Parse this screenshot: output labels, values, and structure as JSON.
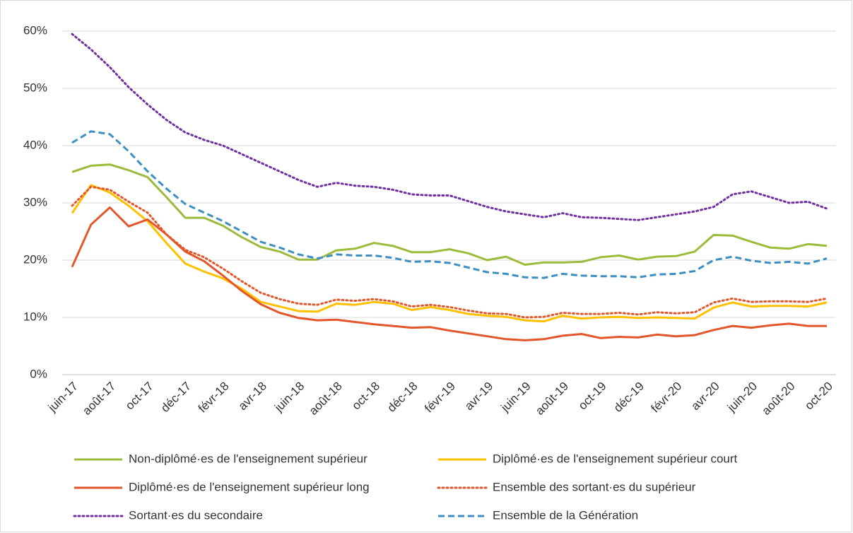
{
  "chart_data": {
    "type": "line",
    "categories": [
      "juin-17",
      null,
      "août-17",
      null,
      "oct-17",
      null,
      "déc-17",
      null,
      "févr-18",
      null,
      "avr-18",
      null,
      "juin-18",
      null,
      "août-18",
      null,
      "oct-18",
      null,
      "déc-18",
      null,
      "févr-19",
      null,
      "avr-19",
      null,
      "juin-19",
      null,
      "août-19",
      null,
      "oct-19",
      null,
      "déc-19",
      null,
      "févr-20",
      null,
      "avr-20",
      null,
      "juin-20",
      null,
      "août-20",
      null,
      "oct-20"
    ],
    "ylim": [
      0,
      60
    ],
    "yticks": [
      {
        "value": 0,
        "label": "0%"
      },
      {
        "value": 10,
        "label": "10%"
      },
      {
        "value": 20,
        "label": "20%"
      },
      {
        "value": 30,
        "label": "30%"
      },
      {
        "value": 40,
        "label": "40%"
      },
      {
        "value": 50,
        "label": "50%"
      },
      {
        "value": 60,
        "label": "60%"
      }
    ],
    "grid": true,
    "legend": "bottom",
    "series": [
      {
        "name": "Non-diplômé·es de l'enseignement supérieur",
        "color": "#9bbb3b",
        "dash": "solid",
        "values": [
          35.4,
          36.5,
          36.7,
          35.7,
          34.5,
          31,
          27.4,
          27.4,
          26,
          24,
          22.3,
          21.5,
          20.1,
          20.1,
          21.7,
          22,
          23,
          22.5,
          21.4,
          21.4,
          21.9,
          21.2,
          20,
          20.6,
          19.2,
          19.6,
          19.6,
          19.7,
          20.5,
          20.8,
          20.1,
          20.6,
          20.7,
          21.5,
          24.4,
          24.3,
          23.2,
          22.2,
          22,
          22.8,
          22.5
        ]
      },
      {
        "name": "Diplômé·es de l'enseignement supérieur court",
        "color": "#ffc000",
        "dash": "solid",
        "values": [
          28.2,
          33.1,
          31.8,
          29.5,
          26.8,
          23,
          19.4,
          18,
          16.8,
          15,
          12.7,
          11.9,
          11.1,
          11,
          12.4,
          12.2,
          12.7,
          12.4,
          11.3,
          11.8,
          11.3,
          10.6,
          10.3,
          10.1,
          9.5,
          9.3,
          10.3,
          9.8,
          10,
          10.1,
          9.9,
          10,
          9.9,
          9.8,
          11.7,
          12.6,
          11.9,
          12,
          12,
          11.9,
          12.6
        ]
      },
      {
        "name": "Diplômé·es de l'enseignement supérieur long",
        "color": "#e2562a",
        "dash": "solid",
        "values": [
          18.8,
          26.2,
          29.2,
          25.9,
          27.1,
          24.5,
          21.5,
          19.8,
          17.3,
          14.6,
          12.3,
          10.8,
          9.9,
          9.5,
          9.6,
          9.2,
          8.8,
          8.5,
          8.2,
          8.3,
          7.7,
          7.2,
          6.7,
          6.2,
          6,
          6.2,
          6.8,
          7.1,
          6.4,
          6.6,
          6.5,
          7,
          6.7,
          6.9,
          7.8,
          8.5,
          8.2,
          8.6,
          8.9,
          8.5,
          8.5
        ]
      },
      {
        "name": "Ensemble des sortant·es du supérieur",
        "color": "#e2562a",
        "dash": "dotted",
        "values": [
          29.5,
          32.8,
          32.3,
          30.2,
          28.3,
          24.5,
          21.8,
          20.5,
          18.5,
          16.3,
          14.3,
          13.2,
          12.4,
          12.2,
          13.1,
          12.9,
          13.2,
          12.8,
          11.9,
          12.2,
          11.8,
          11.2,
          10.7,
          10.6,
          10,
          10.1,
          10.8,
          10.6,
          10.6,
          10.8,
          10.5,
          10.9,
          10.7,
          10.9,
          12.6,
          13.3,
          12.7,
          12.8,
          12.8,
          12.7,
          13.3
        ]
      },
      {
        "name": "Sortant·es du secondaire",
        "color": "#7030a0",
        "dash": "dotted",
        "values": [
          59.5,
          56.8,
          53.7,
          50.2,
          47.2,
          44.5,
          42.3,
          41,
          40,
          38.5,
          37,
          35.5,
          34,
          32.8,
          33.5,
          33,
          32.8,
          32.3,
          31.5,
          31.3,
          31.3,
          30.3,
          29.3,
          28.5,
          28,
          27.5,
          28.2,
          27.5,
          27.4,
          27.2,
          27,
          27.5,
          28,
          28.5,
          29.3,
          31.5,
          32,
          31,
          30,
          30.2,
          29
        ]
      },
      {
        "name": "Ensemble de la Génération",
        "color": "#3d8ec1",
        "dash": "dashed",
        "values": [
          40.5,
          42.5,
          42,
          39,
          35.5,
          32.5,
          29.8,
          28.3,
          26.8,
          25,
          23.2,
          22.2,
          21,
          20.3,
          21,
          20.8,
          20.8,
          20.4,
          19.7,
          19.8,
          19.5,
          18.7,
          17.9,
          17.6,
          17,
          16.9,
          17.6,
          17.3,
          17.2,
          17.2,
          17,
          17.5,
          17.6,
          18.1,
          20,
          20.6,
          19.9,
          19.5,
          19.7,
          19.4,
          20.3
        ]
      }
    ]
  }
}
